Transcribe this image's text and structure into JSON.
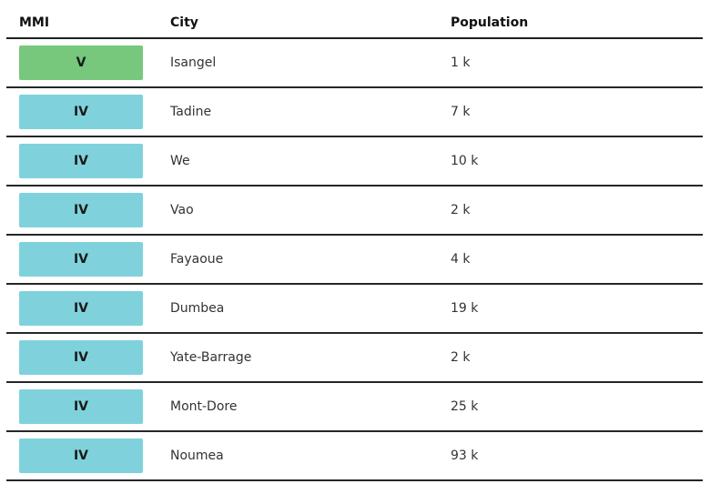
{
  "table": {
    "columns": [
      {
        "label": "MMI"
      },
      {
        "label": "City"
      },
      {
        "label": "Population"
      }
    ],
    "rows": [
      {
        "mmi": "V",
        "mmi_color": "#77c87d",
        "city": "Isangel",
        "population": "1 k"
      },
      {
        "mmi": "IV",
        "mmi_color": "#7fd2dc",
        "city": "Tadine",
        "population": "7 k"
      },
      {
        "mmi": "IV",
        "mmi_color": "#7fd2dc",
        "city": "We",
        "population": "10 k"
      },
      {
        "mmi": "IV",
        "mmi_color": "#7fd2dc",
        "city": "Vao",
        "population": "2 k"
      },
      {
        "mmi": "IV",
        "mmi_color": "#7fd2dc",
        "city": "Fayaoue",
        "population": "4 k"
      },
      {
        "mmi": "IV",
        "mmi_color": "#7fd2dc",
        "city": "Dumbea",
        "population": "19 k"
      },
      {
        "mmi": "IV",
        "mmi_color": "#7fd2dc",
        "city": "Yate-Barrage",
        "population": "2 k"
      },
      {
        "mmi": "IV",
        "mmi_color": "#7fd2dc",
        "city": "Mont-Dore",
        "population": "25 k"
      },
      {
        "mmi": "IV",
        "mmi_color": "#7fd2dc",
        "city": "Noumea",
        "population": "93 k"
      }
    ]
  },
  "colors": {
    "mmi_v_green": "#77c87d",
    "mmi_iv_teal": "#7fd2dc",
    "header_rule": "#1f1f1f",
    "row_rule": "#262626"
  },
  "chart_data": {
    "type": "table",
    "title": "",
    "columns": [
      "MMI",
      "City",
      "Population"
    ],
    "rows": [
      [
        "V",
        "Isangel",
        "1 k"
      ],
      [
        "IV",
        "Tadine",
        "7 k"
      ],
      [
        "IV",
        "We",
        "10 k"
      ],
      [
        "IV",
        "Vao",
        "2 k"
      ],
      [
        "IV",
        "Fayaoue",
        "4 k"
      ],
      [
        "IV",
        "Dumbea",
        "19 k"
      ],
      [
        "IV",
        "Mont-Dore",
        "25 k"
      ],
      [
        "IV",
        "Yate-Barrage",
        "2 k"
      ],
      [
        "IV",
        "Noumea",
        "93 k"
      ]
    ],
    "population_thousands": {
      "Isangel": 1,
      "Tadine": 7,
      "We": 10,
      "Vao": 2,
      "Fayaoue": 4,
      "Dumbea": 19,
      "Yate-Barrage": 2,
      "Mont-Dore": 25,
      "Noumea": 93
    },
    "mmi_badge_colors": {
      "V": "#77c87d",
      "IV": "#7fd2dc"
    }
  }
}
